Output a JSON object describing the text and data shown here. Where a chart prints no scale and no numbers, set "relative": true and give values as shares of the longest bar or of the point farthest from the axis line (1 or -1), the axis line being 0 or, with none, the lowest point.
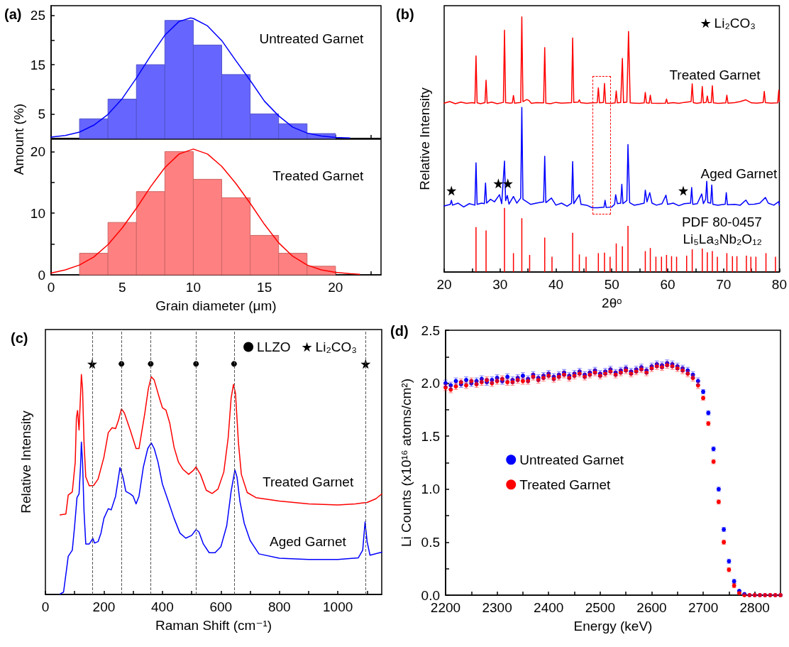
{
  "chart_data": [
    {
      "type": "histogram",
      "annotations": [
        "(a)",
        "Untreated Garnet"
      ],
      "ylabel": "Amount (%)",
      "xlim": [
        0,
        23.2
      ],
      "xticks": [
        0,
        {
          "value": 2.5,
          "label": null
        },
        5,
        {
          "value": 7.5,
          "label": null
        },
        10,
        {
          "value": 12.5,
          "label": null
        },
        15,
        {
          "value": 17.5,
          "label": null
        },
        20,
        {
          "value": 22.5,
          "label": null
        }
      ],
      "ylim": [
        0,
        27
      ],
      "yticks": [
        5,
        {
          "value": 10,
          "label": null
        },
        15,
        {
          "value": 20,
          "label": null
        },
        25
      ],
      "tick_labels": "y",
      "series": [
        {
          "type": "histogram",
          "color": "#6666ff",
          "bins": [
            2,
            4,
            6,
            8,
            10,
            12,
            14,
            16,
            18,
            20
          ],
          "values": [
            4,
            8,
            15,
            24,
            19,
            13,
            5,
            3,
            1
          ]
        },
        {
          "type": "line",
          "color": "#0000ff",
          "x": [
            0,
            1,
            2,
            3,
            4,
            5,
            6,
            7,
            8,
            9,
            9.8,
            10,
            11,
            12,
            13,
            14,
            15,
            16,
            17,
            18,
            19,
            20,
            21
          ],
          "values": [
            0.3,
            0.6,
            1.3,
            2.7,
            4.9,
            8.1,
            12.3,
            16.8,
            21,
            23.8,
            24.5,
            24.4,
            22.9,
            19.9,
            15.8,
            11.8,
            7.6,
            4.6,
            2.3,
            1.1,
            0.5,
            0.2,
            0.1
          ]
        }
      ]
    },
    {
      "type": "histogram",
      "annotations": [
        "Treated Garnet"
      ],
      "xlabel": "Grain diameter (μm)",
      "xlim": [
        0,
        23.2
      ],
      "xticks": [
        0,
        {
          "value": 2.5,
          "label": null
        },
        5,
        {
          "value": 7.5,
          "label": null
        },
        10,
        {
          "value": 12.5,
          "label": null
        },
        15,
        {
          "value": 17.5,
          "label": null
        },
        20,
        {
          "value": 22.5,
          "label": null
        }
      ],
      "ylim": [
        0,
        22
      ],
      "yticks": [
        0,
        {
          "value": 5,
          "label": null
        },
        10,
        {
          "value": 15,
          "label": null
        },
        20
      ],
      "series": [
        {
          "type": "histogram",
          "color": "#ff8080",
          "bins": [
            2,
            4,
            6,
            8,
            10,
            12,
            14,
            16,
            18,
            20
          ],
          "values": [
            3.5,
            8.5,
            13.5,
            20,
            15.5,
            12.5,
            6.4,
            3.5,
            1.4
          ]
        },
        {
          "type": "line",
          "color": "#ff0000",
          "x": [
            0,
            1,
            2,
            3,
            4,
            5,
            6,
            7,
            8,
            9,
            10,
            11,
            12,
            13,
            14,
            15,
            16,
            17,
            18,
            19,
            20,
            21,
            21.7
          ],
          "values": [
            0.3,
            0.8,
            1.6,
            2.9,
            4.9,
            7.6,
            10.8,
            14.3,
            17.4,
            19.6,
            20.4,
            19.6,
            17.6,
            14.8,
            11.6,
            8.2,
            5.2,
            3.0,
            1.6,
            0.8,
            0.4,
            0.2,
            0.1
          ]
        }
      ]
    },
    {
      "type": "line",
      "relative": true,
      "annotations": [
        "(b)"
      ],
      "xlabel": "2θᵒ",
      "ylabel": "Relative Intensity",
      "xlim": [
        20,
        80
      ],
      "xticks": [
        20,
        {
          "value": 25,
          "label": null
        },
        30,
        {
          "value": 35,
          "label": null
        },
        40,
        {
          "value": 45,
          "label": null
        },
        50,
        {
          "value": 55,
          "label": null
        },
        60,
        {
          "value": 65,
          "label": null
        },
        70,
        {
          "value": 75,
          "label": null
        },
        80
      ],
      "legend": "top right",
      "series": [
        {
          "type": "line",
          "name": "Treated Garnet",
          "color": "#ff0000",
          "x": [
            20,
            21,
            22,
            23,
            24,
            25,
            25.5,
            25.7,
            25.9,
            26.5,
            27.3,
            27.5,
            27.7,
            28.5,
            29.5,
            30.6,
            30.8,
            31.0,
            31.8,
            32.2,
            32.4,
            32.6,
            33.7,
            33.9,
            34.1,
            34.8,
            35.2,
            35.6,
            36.5,
            37.8,
            38.0,
            38.2,
            39.0,
            40.0,
            41.0,
            42.8,
            43.0,
            43.2,
            44.0,
            44.2,
            44.4,
            45.5,
            46.5,
            47.4,
            47.6,
            47.8,
            48.5,
            48.7,
            48.9,
            50.0,
            50.6,
            50.8,
            51.0,
            51.6,
            51.9,
            52.1,
            52.7,
            53.0,
            53.3,
            54.0,
            55.0,
            55.8,
            56.0,
            56.2,
            56.7,
            56.9,
            57.1,
            58.5,
            59.6,
            59.8,
            60.0,
            61.0,
            62.0,
            63.0,
            64.2,
            64.4,
            64.6,
            65.2,
            66.0,
            66.2,
            66.4,
            66.9,
            67.1,
            67.3,
            67.8,
            68.0,
            68.2,
            69.0,
            70.4,
            70.6,
            70.8,
            72.0,
            73.0,
            74.0,
            75.0,
            76.0,
            77.1,
            77.3,
            77.5,
            78.5,
            79.7,
            79.9,
            80
          ],
          "values": [
            0.662,
            0.668,
            0.66,
            0.666,
            0.661,
            0.664,
            0.662,
            0.847,
            0.663,
            0.66,
            0.664,
            0.752,
            0.662,
            0.666,
            0.66,
            0.665,
            0.948,
            0.664,
            0.662,
            0.663,
            0.692,
            0.662,
            0.665,
            1.0,
            0.668,
            0.676,
            0.672,
            0.661,
            0.664,
            0.663,
            0.88,
            0.662,
            0.66,
            0.665,
            0.662,
            0.664,
            0.917,
            0.665,
            0.666,
            0.675,
            0.664,
            0.661,
            0.663,
            0.664,
            0.722,
            0.663,
            0.665,
            0.739,
            0.662,
            0.661,
            0.663,
            0.71,
            0.663,
            0.665,
            0.837,
            0.664,
            0.666,
            0.943,
            0.663,
            0.662,
            0.661,
            0.663,
            0.704,
            0.663,
            0.662,
            0.693,
            0.662,
            0.661,
            0.662,
            0.678,
            0.661,
            0.664,
            0.661,
            0.665,
            0.668,
            0.738,
            0.664,
            0.661,
            0.664,
            0.727,
            0.663,
            0.665,
            0.69,
            0.664,
            0.665,
            0.73,
            0.663,
            0.661,
            0.663,
            0.693,
            0.662,
            0.664,
            0.668,
            0.675,
            0.663,
            0.662,
            0.665,
            0.708,
            0.664,
            0.662,
            0.663,
            0.713,
            0.668
          ]
        },
        {
          "type": "line",
          "name": "Aged Garnet",
          "color": "#0000ff",
          "x": [
            20,
            21.1,
            21.3,
            21.5,
            22.5,
            23.5,
            24.5,
            25.5,
            25.7,
            25.9,
            26.7,
            27.2,
            27.4,
            27.6,
            28.3,
            29.0,
            29.9,
            30.3,
            30.8,
            31.0,
            31.3,
            31.6,
            32.4,
            33.0,
            33.7,
            33.9,
            34.1,
            34.6,
            35.5,
            36.5,
            37.8,
            38.0,
            38.2,
            39.2,
            40.0,
            41.0,
            42.0,
            42.8,
            43.0,
            43.2,
            44.2,
            44.5,
            45.5,
            46.5,
            47.5,
            48.6,
            48.8,
            49.0,
            50.0,
            50.5,
            50.7,
            51.0,
            51.6,
            51.8,
            52.0,
            52.7,
            52.9,
            53.2,
            54.0,
            55.0,
            55.8,
            56.0,
            56.3,
            56.8,
            57.2,
            58.0,
            59.0,
            59.7,
            60.0,
            61.0,
            62.0,
            63.0,
            64.1,
            64.3,
            64.5,
            65.3,
            66.1,
            66.4,
            66.8,
            67.0,
            67.2,
            67.7,
            67.9,
            68.1,
            69.0,
            70.3,
            70.5,
            70.7,
            72.0,
            73.0,
            74.0,
            74.5,
            75.5,
            76.5,
            77.5,
            78.0,
            79.0,
            79.9,
            80
          ],
          "values": [
            0.259,
            0.265,
            0.281,
            0.262,
            0.27,
            0.255,
            0.268,
            0.262,
            0.428,
            0.265,
            0.27,
            0.268,
            0.349,
            0.27,
            0.285,
            0.275,
            0.303,
            0.268,
            0.435,
            0.28,
            0.3,
            0.266,
            0.296,
            0.27,
            0.29,
            0.645,
            0.285,
            0.278,
            0.265,
            0.27,
            0.275,
            0.454,
            0.272,
            0.29,
            0.262,
            0.27,
            0.258,
            0.27,
            0.433,
            0.268,
            0.303,
            0.265,
            0.262,
            0.252,
            0.252,
            0.254,
            0.281,
            0.253,
            0.255,
            0.265,
            0.303,
            0.268,
            0.27,
            0.344,
            0.268,
            0.28,
            0.5,
            0.272,
            0.262,
            0.266,
            0.27,
            0.321,
            0.275,
            0.311,
            0.27,
            0.262,
            0.268,
            0.301,
            0.265,
            0.27,
            0.26,
            0.268,
            0.27,
            0.331,
            0.265,
            0.268,
            0.306,
            0.268,
            0.285,
            0.356,
            0.272,
            0.27,
            0.341,
            0.265,
            0.262,
            0.266,
            0.311,
            0.264,
            0.265,
            0.262,
            0.282,
            0.265,
            0.266,
            0.27,
            0.292,
            0.27,
            0.262,
            0.276,
            0.262
          ]
        },
        {
          "type": "bar",
          "name": "PDF 80-0457 Li₅La₃Nb₂O₁₂",
          "color": "#ff0000",
          "x": [
            25.7,
            27.5,
            30.8,
            32.4,
            33.9,
            35.3,
            38.0,
            39.3,
            43.0,
            44.2,
            45.4,
            47.6,
            48.7,
            49.7,
            50.8,
            51.9,
            52.9,
            56.0,
            56.9,
            57.9,
            58.9,
            59.8,
            60.7,
            61.6,
            63.4,
            64.4,
            66.2,
            67.1,
            68.0,
            68.9,
            70.6,
            71.6,
            72.4,
            74.1,
            74.9,
            75.8,
            77.6,
            79.3
          ],
          "values": [
            0.176,
            0.163,
            0.251,
            0.074,
            0.211,
            0.067,
            0.135,
            0.06,
            0.154,
            0.069,
            0.06,
            0.074,
            0.076,
            0.06,
            0.112,
            0.101,
            0.181,
            0.082,
            0.094,
            0.06,
            0.06,
            0.067,
            0.062,
            0.06,
            0.064,
            0.089,
            0.092,
            0.077,
            0.082,
            0.06,
            0.074,
            0.062,
            0.062,
            0.064,
            0.06,
            0.06,
            0.074,
            0.06
          ]
        },
        {
          "type": "scatter",
          "name": "Li₂CO₃",
          "color": "#000000",
          "marker": "star",
          "x": [
            21.3,
            29.7,
            31.4,
            62.8
          ],
          "values": [
            0.319,
            0.347,
            0.347,
            0.319
          ]
        }
      ]
    },
    {
      "type": "line",
      "relative": true,
      "annotations": [
        "(c)"
      ],
      "xlabel": "Raman Shift (cm⁻¹)",
      "ylabel": "Relative Intensity",
      "xlim": [
        0,
        1150
      ],
      "xticks": [
        0,
        {
          "value": 100,
          "label": null
        },
        200,
        {
          "value": 300,
          "label": null
        },
        400,
        {
          "value": 500,
          "label": null
        },
        600,
        {
          "value": 700,
          "label": null
        },
        800,
        {
          "value": 900,
          "label": null
        },
        1000,
        {
          "value": 1100,
          "label": null
        }
      ],
      "legend": "top right",
      "ref_lines": [
        {
          "axis": "x",
          "value": 160,
          "color": "#555555",
          "line_style": "dashed"
        },
        {
          "axis": "x",
          "value": 260,
          "color": "#555555",
          "line_style": "dashed"
        },
        {
          "axis": "x",
          "value": 360,
          "color": "#555555",
          "line_style": "dashed"
        },
        {
          "axis": "x",
          "value": 515,
          "color": "#555555",
          "line_style": "dashed"
        },
        {
          "axis": "x",
          "value": 645,
          "color": "#555555",
          "line_style": "dashed"
        },
        {
          "axis": "x",
          "value": 1095,
          "color": "#555555",
          "line_style": "dashed"
        }
      ],
      "series": [
        {
          "type": "line",
          "name": "Treated Garnet",
          "color": "#ff0000",
          "x": [
            50,
            70,
            78,
            92,
            102,
            106,
            110,
            115,
            120,
            123,
            127,
            132,
            138,
            150,
            165,
            180,
            200,
            215,
            228,
            240,
            250,
            260,
            270,
            290,
            310,
            320,
            340,
            352,
            362,
            372,
            390,
            400,
            412,
            425,
            440,
            455,
            470,
            490,
            505,
            515,
            530,
            550,
            570,
            590,
            610,
            625,
            635,
            643,
            650,
            660,
            670,
            690,
            720,
            800,
            900,
            1000,
            1060,
            1100,
            1130,
            1150
          ],
          "values": [
            0.345,
            0.349,
            0.431,
            0.445,
            0.574,
            0.766,
            0.798,
            0.713,
            0.862,
            0.954,
            0.893,
            0.659,
            0.51,
            0.471,
            0.473,
            0.5,
            0.595,
            0.702,
            0.723,
            0.719,
            0.756,
            0.805,
            0.787,
            0.713,
            0.633,
            0.633,
            0.787,
            0.893,
            0.944,
            0.93,
            0.851,
            0.81,
            0.8,
            0.744,
            0.638,
            0.574,
            0.543,
            0.521,
            0.537,
            0.553,
            0.521,
            0.452,
            0.438,
            0.457,
            0.531,
            0.68,
            0.851,
            0.911,
            0.872,
            0.659,
            0.521,
            0.442,
            0.42,
            0.405,
            0.393,
            0.388,
            0.393,
            0.399,
            0.415,
            0.436
          ]
        },
        {
          "type": "line",
          "name": "Aged Garnet",
          "color": "#0000ff",
          "x": [
            50,
            62,
            72,
            78,
            92,
            100,
            108,
            115,
            120,
            123,
            127,
            132,
            138,
            150,
            158,
            162,
            168,
            180,
            190,
            200,
            215,
            225,
            240,
            255,
            265,
            275,
            290,
            300,
            310,
            320,
            335,
            350,
            362,
            372,
            385,
            400,
            420,
            440,
            460,
            480,
            500,
            515,
            525,
            540,
            560,
            580,
            600,
            620,
            635,
            648,
            655,
            665,
            680,
            700,
            730,
            800,
            900,
            1000,
            1070,
            1085,
            1093,
            1100,
            1110,
            1150
          ],
          "values": [
            0.002,
            0.01,
            0.106,
            0.165,
            0.192,
            0.298,
            0.42,
            0.436,
            0.553,
            0.661,
            0.574,
            0.362,
            0.219,
            0.219,
            0.234,
            0.244,
            0.223,
            0.229,
            0.266,
            0.33,
            0.372,
            0.367,
            0.426,
            0.55,
            0.51,
            0.447,
            0.436,
            0.426,
            0.393,
            0.426,
            0.553,
            0.633,
            0.657,
            0.633,
            0.574,
            0.479,
            0.405,
            0.33,
            0.266,
            0.244,
            0.256,
            0.281,
            0.271,
            0.219,
            0.181,
            0.181,
            0.207,
            0.298,
            0.447,
            0.54,
            0.51,
            0.405,
            0.308,
            0.234,
            0.176,
            0.157,
            0.152,
            0.152,
            0.159,
            0.192,
            0.314,
            0.229,
            0.17,
            0.183
          ]
        },
        {
          "type": "scatter",
          "name": "LLZO",
          "color": "#000000",
          "marker": "circle",
          "x": [
            260,
            360,
            515,
            645
          ],
          "values": [
            1,
            1,
            1,
            1
          ]
        },
        {
          "type": "scatter",
          "name": "Li₂CO₃",
          "color": "#000000",
          "marker": "star",
          "x": [
            160,
            1095
          ],
          "values": [
            1,
            1
          ]
        }
      ]
    },
    {
      "type": "scatter",
      "annotations": [
        "(d)"
      ],
      "xlabel": "Energy (keV)",
      "ylabel": "Li Counts (x10¹⁶ atoms/cm²)",
      "xlim": [
        2200,
        2850
      ],
      "xticks": [
        2200,
        {
          "value": 2250,
          "label": null
        },
        2300,
        {
          "value": 2350,
          "label": null
        },
        2400,
        {
          "value": 2450,
          "label": null
        },
        2500,
        {
          "value": 2550,
          "label": null
        },
        2600,
        {
          "value": 2650,
          "label": null
        },
        2700,
        {
          "value": 2750,
          "label": null
        },
        2800
      ],
      "ylim": [
        0,
        2.5
      ],
      "yticks": [
        {
          "value": 0,
          "label": "0.0"
        },
        {
          "value": 0.25,
          "label": null
        },
        0.5,
        {
          "value": 0.75,
          "label": null
        },
        {
          "value": 1,
          "label": "1.0"
        },
        {
          "value": 1.25,
          "label": null
        },
        1.5,
        {
          "value": 1.75,
          "label": null
        },
        {
          "value": 2,
          "label": "2.0"
        },
        {
          "value": 2.25,
          "label": null
        },
        2.5
      ],
      "legend": "left",
      "x": [
        2200,
        2210,
        2220,
        2230,
        2240,
        2250,
        2260,
        2270,
        2280,
        2290,
        2300,
        2310,
        2320,
        2330,
        2340,
        2350,
        2360,
        2370,
        2380,
        2390,
        2400,
        2410,
        2420,
        2430,
        2440,
        2450,
        2460,
        2470,
        2480,
        2490,
        2500,
        2510,
        2520,
        2530,
        2540,
        2550,
        2560,
        2570,
        2580,
        2590,
        2600,
        2610,
        2620,
        2630,
        2640,
        2650,
        2660,
        2670,
        2680,
        2690,
        2700,
        2710,
        2720,
        2730,
        2740,
        2750,
        2760,
        2770,
        2780,
        2790,
        2800,
        2810,
        2820,
        2830,
        2840,
        2850
      ],
      "series": [
        {
          "name": "Untreated Garnet",
          "color": "#0000ff",
          "marker": "circle",
          "values": [
            2.0,
            1.98,
            2.02,
            1.99,
            2.03,
            2.0,
            2.02,
            2.04,
            2.01,
            2.03,
            2.05,
            2.02,
            2.06,
            2.03,
            2.05,
            2.07,
            2.04,
            2.08,
            2.05,
            2.07,
            2.09,
            2.06,
            2.08,
            2.1,
            2.07,
            2.09,
            2.11,
            2.08,
            2.1,
            2.12,
            2.09,
            2.11,
            2.13,
            2.1,
            2.12,
            2.14,
            2.11,
            2.13,
            2.15,
            2.12,
            2.16,
            2.18,
            2.17,
            2.19,
            2.18,
            2.16,
            2.14,
            2.12,
            2.08,
            2.02,
            1.92,
            1.72,
            1.38,
            1.0,
            0.62,
            0.32,
            0.13,
            0.04,
            0.01,
            0.0,
            0.0,
            0.0,
            0.0,
            0.0,
            0.0,
            0.0
          ],
          "errors": [
            0.03,
            0.03,
            0.03,
            0.03,
            0.03,
            0.03,
            0.03,
            0.03,
            0.03,
            0.03,
            0.03,
            0.03,
            0.03,
            0.03,
            0.03,
            0.03,
            0.03,
            0.03,
            0.03,
            0.03,
            0.03,
            0.03,
            0.03,
            0.03,
            0.03,
            0.03,
            0.03,
            0.03,
            0.03,
            0.03,
            0.03,
            0.03,
            0.03,
            0.03,
            0.03,
            0.03,
            0.03,
            0.03,
            0.03,
            0.03,
            0.03,
            0.03,
            0.03,
            0.03,
            0.03,
            0.03,
            0.03,
            0.03,
            0.03,
            0.03,
            0.02,
            0.02,
            0.02,
            0.02,
            0.02,
            0.02,
            0.02,
            null,
            null,
            null,
            null,
            null,
            null,
            null,
            null,
            null
          ]
        },
        {
          "name": "Treated Garnet",
          "color": "#ff0000",
          "marker": "circle",
          "values": [
            1.96,
            1.94,
            1.97,
            2.01,
            1.98,
            2.02,
            1.99,
            2.01,
            2.03,
            2.0,
            2.02,
            2.04,
            2.01,
            2.01,
            2.03,
            2.02,
            2.02,
            2.06,
            2.03,
            2.05,
            2.07,
            2.04,
            2.06,
            2.08,
            2.05,
            2.07,
            2.09,
            2.06,
            2.08,
            2.1,
            2.07,
            2.09,
            2.11,
            2.08,
            2.1,
            2.12,
            2.09,
            2.11,
            2.13,
            2.1,
            2.14,
            2.16,
            2.15,
            2.17,
            2.16,
            2.14,
            2.12,
            2.09,
            2.05,
            1.98,
            1.86,
            1.62,
            1.26,
            0.88,
            0.5,
            0.24,
            0.09,
            0.02,
            0.0,
            0.0,
            0.0,
            0.0,
            0.0,
            0.0,
            0.0,
            0.0
          ],
          "errors": [
            0.03,
            0.03,
            0.03,
            0.03,
            0.03,
            0.03,
            0.03,
            0.03,
            0.03,
            0.03,
            0.03,
            0.03,
            0.03,
            0.03,
            0.03,
            0.03,
            0.03,
            0.03,
            0.03,
            0.03,
            0.03,
            0.03,
            0.03,
            0.03,
            0.03,
            0.03,
            0.03,
            0.03,
            0.03,
            0.03,
            0.03,
            0.03,
            0.03,
            0.03,
            0.03,
            0.03,
            0.03,
            0.03,
            0.03,
            0.03,
            0.03,
            0.03,
            0.03,
            0.03,
            0.03,
            0.03,
            0.03,
            0.03,
            0.03,
            0.03,
            0.02,
            0.02,
            0.02,
            0.02,
            0.02,
            0.02,
            0.02,
            null,
            null,
            null,
            null,
            null,
            null,
            null,
            null,
            null
          ]
        }
      ]
    }
  ]
}
